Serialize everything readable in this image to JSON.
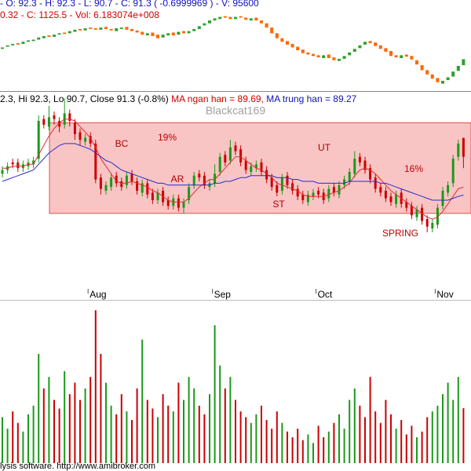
{
  "chart_data": [
    {
      "type": "candlestick",
      "header": [
        "- O: 92.3 - H: 92.3 - L: 90.7 - C: 91.3 ( -0.6999969 ) - V: 95600",
        "0.32 - C: 1125.5 - Vol: 6.183074e+008"
      ],
      "open": [
        1140,
        1143,
        1145,
        1148,
        1147,
        1150,
        1151,
        1153,
        1155,
        1159,
        1157,
        1160,
        1163,
        1162,
        1164,
        1168,
        1166,
        1170,
        1169,
        1167,
        1171,
        1168,
        1165,
        1168,
        1171,
        1168,
        1166,
        1164,
        1159,
        1163,
        1160,
        1156,
        1159,
        1163,
        1160,
        1165,
        1162,
        1165,
        1168,
        1173,
        1176,
        1180,
        1182,
        1186,
        1185,
        1182,
        1186,
        1184,
        1180,
        1184,
        1180,
        1176,
        1170,
        1162,
        1155,
        1151,
        1147,
        1143,
        1139,
        1135,
        1133,
        1131,
        1127,
        1132,
        1128,
        1123,
        1126,
        1131,
        1136,
        1141,
        1146,
        1151,
        1149,
        1145,
        1141,
        1137,
        1131,
        1127,
        1132,
        1130,
        1124,
        1117,
        1110,
        1104,
        1099,
        1091,
        1096,
        1101,
        1109,
        1117
      ],
      "close": [
        1142,
        1145,
        1147,
        1146,
        1150,
        1152,
        1153,
        1156,
        1158,
        1157,
        1160,
        1162,
        1161,
        1165,
        1167,
        1166,
        1169,
        1168,
        1167,
        1170,
        1168,
        1166,
        1169,
        1170,
        1167,
        1165,
        1163,
        1160,
        1162,
        1158,
        1155,
        1160,
        1162,
        1159,
        1164,
        1162,
        1165,
        1168,
        1172,
        1176,
        1180,
        1183,
        1185,
        1184,
        1182,
        1185,
        1184,
        1181,
        1183,
        1180,
        1176,
        1170,
        1162,
        1155,
        1150,
        1146,
        1142,
        1138,
        1134,
        1132,
        1130,
        1128,
        1131,
        1127,
        1124,
        1126,
        1130,
        1135,
        1140,
        1145,
        1150,
        1148,
        1144,
        1140,
        1136,
        1130,
        1128,
        1131,
        1129,
        1125,
        1118,
        1110,
        1104,
        1098,
        1093,
        1095,
        1100,
        1108,
        1116,
        1125.5
      ],
      "ylim": [
        1085,
        1200
      ],
      "up_color": "#2ea02e",
      "down_color": "#ff6600"
    },
    {
      "type": "candlestick",
      "header": [
        "2.3, Hi 92.3, Lo 90.7, Close 91.3 (-0.8%) ",
        "MA ngan han = 89.69, ",
        "MA trung han = 89.27"
      ],
      "watermark": "Blackcat169",
      "categories": [
        null,
        null,
        null,
        null,
        null,
        null,
        null,
        null,
        null,
        null,
        null,
        null,
        null,
        null,
        null,
        null,
        null,
        "Aug",
        null,
        null,
        null,
        null,
        null,
        null,
        null,
        null,
        null,
        null,
        null,
        null,
        null,
        null,
        null,
        null,
        null,
        null,
        null,
        null,
        null,
        null,
        null,
        "Sep",
        null,
        null,
        null,
        null,
        null,
        null,
        null,
        null,
        null,
        null,
        null,
        null,
        null,
        null,
        null,
        null,
        null,
        null,
        null,
        "Oct",
        null,
        null,
        null,
        null,
        null,
        null,
        null,
        null,
        null,
        null,
        null,
        null,
        null,
        null,
        null,
        null,
        null,
        null,
        null,
        null,
        null,
        null,
        "Nov",
        null,
        null,
        null,
        null,
        null
      ],
      "open": [
        90.4,
        90.6,
        91.0,
        91.0,
        90.7,
        90.8,
        90.9,
        91.2,
        93.3,
        92.9,
        93.5,
        93.2,
        93.0,
        93.6,
        93.1,
        92.6,
        92.1,
        92.4,
        92.0,
        90.2,
        89.5,
        89.7,
        90.3,
        90.0,
        89.8,
        90.4,
        90.0,
        89.4,
        89.9,
        89.4,
        89.0,
        89.5,
        89.0,
        88.7,
        89.1,
        88.6,
        89.0,
        89.8,
        90.4,
        90.3,
        89.7,
        89.9,
        90.5,
        91.4,
        91.1,
        91.9,
        91.7,
        91.1,
        90.5,
        90.7,
        91.0,
        90.6,
        90.2,
        89.8,
        89.5,
        90.3,
        89.9,
        89.6,
        89.3,
        88.9,
        89.2,
        89.5,
        89.4,
        89.1,
        89.7,
        89.3,
        89.8,
        90.0,
        90.4,
        91.3,
        91.1,
        90.7,
        90.2,
        89.7,
        89.5,
        89.2,
        88.8,
        89.4,
        88.9,
        88.7,
        88.1,
        88.6,
        88.0,
        87.5,
        87.7,
        88.7,
        89.4,
        89.9,
        91.3,
        92.3
      ],
      "high": [
        90.8,
        91.0,
        91.2,
        91.2,
        91.1,
        91.2,
        91.3,
        93.5,
        93.5,
        94.0,
        93.7,
        93.4,
        94.4,
        93.8,
        93.3,
        92.8,
        92.5,
        92.6,
        92.2,
        90.4,
        90.0,
        90.4,
        90.5,
        90.2,
        90.5,
        90.6,
        90.2,
        90.1,
        90.1,
        89.6,
        89.6,
        89.7,
        89.2,
        89.3,
        89.3,
        89.1,
        89.9,
        90.5,
        90.6,
        90.5,
        90.1,
        90.9,
        91.5,
        91.6,
        92.2,
        92.1,
        91.9,
        91.3,
        91.0,
        91.1,
        91.2,
        90.8,
        90.4,
        90.0,
        90.4,
        90.5,
        90.1,
        89.8,
        89.5,
        89.5,
        89.6,
        89.7,
        89.6,
        89.8,
        89.9,
        90.0,
        90.3,
        90.7,
        91.6,
        91.5,
        91.3,
        90.9,
        90.4,
        89.9,
        89.7,
        89.4,
        89.5,
        89.6,
        89.1,
        88.9,
        88.7,
        88.8,
        88.2,
        88.0,
        88.8,
        89.7,
        90.0,
        91.4,
        92.2,
        92.3
      ],
      "low": [
        90.2,
        90.4,
        90.7,
        90.5,
        90.5,
        90.6,
        90.7,
        91.0,
        92.8,
        92.7,
        93.0,
        92.6,
        92.8,
        92.9,
        92.2,
        91.9,
        91.9,
        91.8,
        89.9,
        89.3,
        89.3,
        89.5,
        89.7,
        89.5,
        89.6,
        89.8,
        89.3,
        89.2,
        89.1,
        88.8,
        88.8,
        88.7,
        88.5,
        88.5,
        88.4,
        88.3,
        88.8,
        89.6,
        90.0,
        89.6,
        89.5,
        89.7,
        90.3,
        90.8,
        90.9,
        91.4,
        90.8,
        90.4,
        90.3,
        90.5,
        90.3,
        89.9,
        89.5,
        89.2,
        89.3,
        89.6,
        89.3,
        89.0,
        88.8,
        88.7,
        89.0,
        89.1,
        88.8,
        88.9,
        89.2,
        89.1,
        89.6,
        89.8,
        90.2,
        90.8,
        90.4,
        89.9,
        89.4,
        89.2,
        88.9,
        88.7,
        88.6,
        88.6,
        88.4,
        88.0,
        87.9,
        87.7,
        87.3,
        87.3,
        87.5,
        88.5,
        89.2,
        89.7,
        91.1,
        90.7
      ],
      "close": [
        90.6,
        90.8,
        90.9,
        90.7,
        90.9,
        91.0,
        91.1,
        93.2,
        93.0,
        93.4,
        93.3,
        92.9,
        93.6,
        93.2,
        92.5,
        92.2,
        92.3,
        92.0,
        90.1,
        89.6,
        89.8,
        90.2,
        89.9,
        89.7,
        90.3,
        90.0,
        89.5,
        89.9,
        89.3,
        89.0,
        89.4,
        88.9,
        88.7,
        89.1,
        88.6,
        88.9,
        89.7,
        90.3,
        90.2,
        89.8,
        89.9,
        90.4,
        91.3,
        91.0,
        91.8,
        91.6,
        91.0,
        90.6,
        90.8,
        90.9,
        90.5,
        90.1,
        89.7,
        89.4,
        90.2,
        89.8,
        89.5,
        89.2,
        89.0,
        89.3,
        89.4,
        89.3,
        89.0,
        89.6,
        89.4,
        89.8,
        90.1,
        90.5,
        91.2,
        91.0,
        90.6,
        90.1,
        89.6,
        89.4,
        89.1,
        88.9,
        89.3,
        88.8,
        88.6,
        88.2,
        88.5,
        87.9,
        87.6,
        87.8,
        88.6,
        89.5,
        89.8,
        91.2,
        92.0,
        91.3
      ],
      "series": [
        {
          "color": "#e03030",
          "values": [
            90.7,
            90.7,
            90.8,
            90.8,
            90.8,
            90.9,
            90.9,
            91.4,
            91.9,
            92.4,
            92.8,
            93.1,
            93.3,
            93.3,
            93.2,
            92.9,
            92.6,
            92.3,
            91.8,
            91.2,
            90.8,
            90.4,
            90.0,
            89.9,
            89.9,
            90.0,
            89.9,
            89.8,
            89.7,
            89.5,
            89.4,
            89.2,
            89.0,
            88.9,
            88.9,
            88.9,
            89.1,
            89.4,
            89.7,
            89.9,
            90.1,
            90.1,
            90.4,
            90.7,
            91.0,
            91.3,
            91.3,
            91.1,
            90.9,
            90.7,
            90.6,
            90.4,
            90.2,
            89.9,
            89.8,
            89.7,
            89.6,
            89.5,
            89.3,
            89.2,
            89.2,
            89.2,
            89.2,
            89.3,
            89.4,
            89.5,
            89.7,
            89.9,
            90.3,
            90.6,
            90.7,
            90.6,
            90.4,
            90.1,
            89.8,
            89.5,
            89.3,
            89.1,
            88.9,
            88.7,
            88.5,
            88.3,
            88.1,
            88.0,
            88.1,
            88.4,
            88.8,
            89.2,
            89.6,
            89.69
          ]
        },
        {
          "color": "#2a2ad0",
          "values": [
            90.0,
            90.1,
            90.2,
            90.3,
            90.4,
            90.5,
            90.6,
            90.9,
            91.2,
            91.5,
            91.7,
            91.9,
            92.0,
            92.0,
            92.0,
            91.9,
            91.8,
            91.7,
            91.5,
            91.3,
            91.1,
            91.0,
            90.8,
            90.6,
            90.5,
            90.4,
            90.3,
            90.2,
            90.1,
            90.0,
            89.9,
            89.9,
            89.8,
            89.8,
            89.8,
            89.8,
            89.8,
            89.8,
            89.8,
            89.8,
            89.8,
            89.9,
            89.9,
            90.0,
            90.0,
            90.1,
            90.2,
            90.2,
            90.3,
            90.3,
            90.3,
            90.3,
            90.3,
            90.2,
            90.2,
            90.2,
            90.1,
            90.1,
            90.0,
            90.0,
            90.0,
            89.9,
            89.9,
            89.9,
            89.9,
            89.9,
            89.9,
            90.0,
            90.0,
            90.0,
            90.0,
            90.0,
            90.0,
            89.9,
            89.9,
            89.8,
            89.7,
            89.6,
            89.5,
            89.4,
            89.3,
            89.2,
            89.1,
            89.0,
            89.0,
            89.0,
            89.0,
            89.1,
            89.2,
            89.27
          ]
        }
      ],
      "range_box": {
        "high": 93.1,
        "low": 88.3,
        "color": "#f9c4c4"
      },
      "annotations": [
        "BC",
        "19%",
        "AR",
        "UT",
        "16%",
        "ST",
        "SPRING"
      ],
      "ylim": [
        84.3,
        94.7
      ],
      "up_color": "#1a9a1a",
      "down_color": "#cc0000"
    },
    {
      "type": "bar",
      "values": [
        80000,
        60000,
        90000,
        70000,
        55000,
        85000,
        100000,
        190000,
        130000,
        150000,
        110000,
        95000,
        160000,
        120000,
        140000,
        110000,
        130000,
        150000,
        266000,
        190000,
        140000,
        100000,
        85000,
        120000,
        90000,
        75000,
        130000,
        215000,
        110000,
        95000,
        80000,
        120000,
        100000,
        90000,
        140000,
        110000,
        150000,
        130000,
        100000,
        85000,
        120000,
        240000,
        170000,
        130000,
        150000,
        110000,
        90000,
        80000,
        70000,
        85000,
        100000,
        75000,
        60000,
        90000,
        70000,
        55000,
        45000,
        60000,
        40000,
        50000,
        35000,
        65000,
        45000,
        55000,
        70000,
        85000,
        60000,
        110000,
        130000,
        100000,
        80000,
        150000,
        90000,
        70000,
        110000,
        85000,
        60000,
        75000,
        50000,
        65000,
        45000,
        55000,
        80000,
        90000,
        100000,
        120000,
        140000,
        110000,
        150000,
        95600
      ],
      "ylim": [
        0,
        280000
      ],
      "up_color": "#1a9a1a",
      "down_color": "#cc0000",
      "footer": "lysis software. http://www.amibroker.com"
    }
  ]
}
